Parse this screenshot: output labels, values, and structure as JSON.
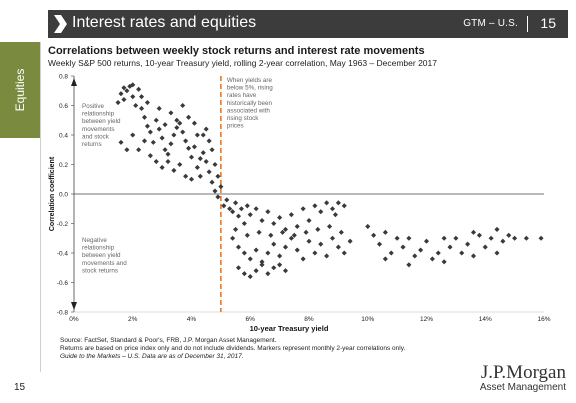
{
  "header": {
    "title": "Interest rates and equities",
    "series_label": "GTM – U.S.",
    "page_number": "15"
  },
  "side_tab": {
    "label": "Equities"
  },
  "page_footer_number": "15",
  "logo": {
    "brand": "J.P.Morgan",
    "division": "Asset Management"
  },
  "footnotes": {
    "source": "Source: FactSet, Standard & Poor's, FRB, J.P. Morgan Asset Management.",
    "note": "Returns are based on price index only and do not include dividends. Markers represent monthly 2-year correlations only.",
    "guide": "Guide to the Markets – U.S. Data are as of December 31, 2017."
  },
  "colors": {
    "header_bg": "#3c3c3c",
    "side_tab": "#7a8a3e",
    "marker": "#3a3a3a",
    "divider": "#e87722"
  },
  "chart_data": {
    "type": "scatter",
    "title": "Correlations between weekly stock returns and interest rate movements",
    "subtitle": "Weekly S&P 500 returns, 10-year Treasury yield, rolling 2-year correlation, May 1963 – December 2017",
    "xlabel": "10-year Treasury yield",
    "ylabel": "Correlation coefficient",
    "xlim": [
      0,
      16
    ],
    "ylim": [
      -0.8,
      0.8
    ],
    "xticks": [
      "0%",
      "2%",
      "4%",
      "6%",
      "8%",
      "10%",
      "12%",
      "14%",
      "16%"
    ],
    "yticks": [
      "0.8",
      "0.6",
      "0.4",
      "0.2",
      "0.0",
      "-0.2",
      "-0.4",
      "-0.6",
      "-0.8"
    ],
    "divider_x": 5,
    "annotations": {
      "positive": [
        "Positive",
        "relationship",
        "between yield",
        "movements",
        "and stock",
        "returns"
      ],
      "negative": [
        "Negative",
        "relationship",
        "between yield",
        "movements and",
        "stock returns"
      ],
      "threshold": [
        "When yields are",
        "below 5%, rising",
        "rates have",
        "historically been",
        "associated with",
        "rising stock",
        "prices"
      ]
    },
    "points": [
      [
        1.5,
        0.62
      ],
      [
        1.6,
        0.68
      ],
      [
        1.7,
        0.72
      ],
      [
        1.8,
        0.7
      ],
      [
        1.9,
        0.73
      ],
      [
        2.0,
        0.66
      ],
      [
        2.1,
        0.6
      ],
      [
        2.2,
        0.71
      ],
      [
        1.7,
        0.64
      ],
      [
        2.0,
        0.74
      ],
      [
        2.3,
        0.58
      ],
      [
        2.4,
        0.52
      ],
      [
        2.5,
        0.46
      ],
      [
        2.6,
        0.42
      ],
      [
        2.7,
        0.35
      ],
      [
        2.8,
        0.5
      ],
      [
        2.9,
        0.44
      ],
      [
        3.0,
        0.38
      ],
      [
        3.1,
        0.3
      ],
      [
        3.2,
        0.27
      ],
      [
        3.3,
        0.34
      ],
      [
        3.4,
        0.4
      ],
      [
        3.5,
        0.45
      ],
      [
        3.6,
        0.48
      ],
      [
        3.7,
        0.42
      ],
      [
        3.8,
        0.36
      ],
      [
        3.9,
        0.31
      ],
      [
        4.0,
        0.25
      ],
      [
        4.1,
        0.32
      ],
      [
        4.2,
        0.4
      ],
      [
        1.6,
        0.35
      ],
      [
        1.8,
        0.3
      ],
      [
        2.0,
        0.4
      ],
      [
        2.2,
        0.3
      ],
      [
        2.4,
        0.36
      ],
      [
        2.6,
        0.26
      ],
      [
        2.8,
        0.22
      ],
      [
        3.0,
        0.18
      ],
      [
        3.2,
        0.22
      ],
      [
        3.4,
        0.16
      ],
      [
        3.6,
        0.2
      ],
      [
        3.8,
        0.12
      ],
      [
        4.0,
        0.1
      ],
      [
        4.2,
        0.18
      ],
      [
        4.3,
        0.24
      ],
      [
        4.4,
        0.28
      ],
      [
        4.5,
        0.22
      ],
      [
        4.6,
        0.15
      ],
      [
        4.7,
        0.08
      ],
      [
        4.8,
        0.02
      ],
      [
        4.4,
        0.4
      ],
      [
        4.5,
        0.44
      ],
      [
        4.6,
        0.36
      ],
      [
        4.7,
        0.3
      ],
      [
        4.8,
        0.2
      ],
      [
        4.9,
        0.12
      ],
      [
        5.0,
        0.05
      ],
      [
        4.9,
        -0.02
      ],
      [
        5.1,
        -0.08
      ],
      [
        5.2,
        -0.04
      ],
      [
        3.3,
        0.55
      ],
      [
        3.5,
        0.5
      ],
      [
        3.7,
        0.6
      ],
      [
        3.9,
        0.52
      ],
      [
        4.1,
        0.48
      ],
      [
        2.9,
        0.58
      ],
      [
        2.5,
        0.62
      ],
      [
        2.3,
        0.66
      ],
      [
        3.1,
        0.47
      ],
      [
        4.3,
        0.12
      ],
      [
        5.3,
        -0.1
      ],
      [
        5.4,
        -0.12
      ],
      [
        5.5,
        -0.06
      ],
      [
        5.6,
        -0.15
      ],
      [
        5.7,
        -0.1
      ],
      [
        5.8,
        -0.2
      ],
      [
        5.9,
        -0.08
      ],
      [
        6.0,
        -0.14
      ],
      [
        6.2,
        -0.1
      ],
      [
        6.4,
        -0.18
      ],
      [
        6.6,
        -0.12
      ],
      [
        6.8,
        -0.2
      ],
      [
        7.0,
        -0.16
      ],
      [
        7.2,
        -0.24
      ],
      [
        7.4,
        -0.14
      ],
      [
        7.6,
        -0.22
      ],
      [
        7.8,
        -0.1
      ],
      [
        8.0,
        -0.18
      ],
      [
        8.2,
        -0.08
      ],
      [
        8.4,
        -0.12
      ],
      [
        8.6,
        -0.06
      ],
      [
        8.8,
        -0.1
      ],
      [
        9.0,
        -0.06
      ],
      [
        9.2,
        -0.08
      ],
      [
        8.9,
        -0.14
      ],
      [
        5.4,
        -0.3
      ],
      [
        5.6,
        -0.36
      ],
      [
        5.8,
        -0.4
      ],
      [
        6.0,
        -0.44
      ],
      [
        6.2,
        -0.38
      ],
      [
        6.4,
        -0.46
      ],
      [
        6.6,
        -0.4
      ],
      [
        6.8,
        -0.34
      ],
      [
        7.0,
        -0.42
      ],
      [
        7.2,
        -0.36
      ],
      [
        7.4,
        -0.3
      ],
      [
        7.6,
        -0.38
      ],
      [
        7.8,
        -0.44
      ],
      [
        8.0,
        -0.32
      ],
      [
        8.2,
        -0.4
      ],
      [
        8.4,
        -0.34
      ],
      [
        8.6,
        -0.42
      ],
      [
        8.8,
        -0.3
      ],
      [
        9.0,
        -0.36
      ],
      [
        9.2,
        -0.4
      ],
      [
        9.4,
        -0.32
      ],
      [
        5.6,
        -0.5
      ],
      [
        5.8,
        -0.54
      ],
      [
        6.0,
        -0.56
      ],
      [
        6.2,
        -0.52
      ],
      [
        6.4,
        -0.48
      ],
      [
        6.6,
        -0.54
      ],
      [
        6.8,
        -0.5
      ],
      [
        7.0,
        -0.48
      ],
      [
        7.2,
        -0.52
      ],
      [
        5.5,
        -0.24
      ],
      [
        5.9,
        -0.28
      ],
      [
        6.3,
        -0.26
      ],
      [
        6.7,
        -0.28
      ],
      [
        7.1,
        -0.26
      ],
      [
        7.5,
        -0.28
      ],
      [
        7.9,
        -0.26
      ],
      [
        8.3,
        -0.24
      ],
      [
        8.7,
        -0.22
      ],
      [
        9.1,
        -0.26
      ],
      [
        10.2,
        -0.28
      ],
      [
        10.4,
        -0.34
      ],
      [
        10.6,
        -0.44
      ],
      [
        10.8,
        -0.4
      ],
      [
        11.0,
        -0.3
      ],
      [
        11.2,
        -0.36
      ],
      [
        11.4,
        -0.48
      ],
      [
        11.6,
        -0.42
      ],
      [
        11.8,
        -0.38
      ],
      [
        12.0,
        -0.32
      ],
      [
        12.2,
        -0.44
      ],
      [
        12.4,
        -0.4
      ],
      [
        12.6,
        -0.46
      ],
      [
        12.8,
        -0.36
      ],
      [
        13.0,
        -0.3
      ],
      [
        13.2,
        -0.4
      ],
      [
        13.4,
        -0.34
      ],
      [
        13.6,
        -0.42
      ],
      [
        13.8,
        -0.28
      ],
      [
        14.0,
        -0.36
      ],
      [
        14.2,
        -0.3
      ],
      [
        14.4,
        -0.24
      ],
      [
        14.6,
        -0.32
      ],
      [
        14.8,
        -0.28
      ],
      [
        15.0,
        -0.3
      ],
      [
        15.4,
        -0.3
      ],
      [
        15.9,
        -0.3
      ],
      [
        10.0,
        -0.22
      ],
      [
        10.6,
        -0.26
      ],
      [
        11.4,
        -0.3
      ],
      [
        12.6,
        -0.3
      ],
      [
        13.6,
        -0.26
      ],
      [
        14.4,
        -0.4
      ]
    ]
  }
}
